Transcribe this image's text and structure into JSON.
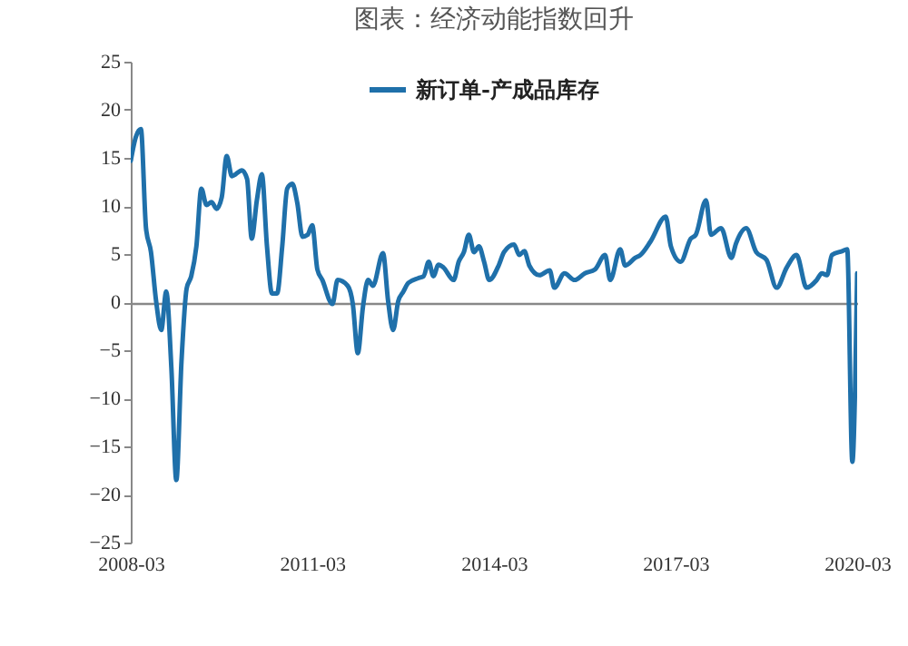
{
  "chart_data": {
    "type": "line",
    "title": "图表：经济动能指数回升",
    "x": [
      "2008-03",
      "2008-04",
      "2008-05",
      "2008-06",
      "2008-07",
      "2008-08",
      "2008-09",
      "2008-10",
      "2008-11",
      "2008-12",
      "2009-01",
      "2009-02",
      "2009-03",
      "2009-04",
      "2009-05",
      "2009-06",
      "2009-07",
      "2009-08",
      "2009-09",
      "2009-10",
      "2009-11",
      "2010-01",
      "2010-02",
      "2010-03",
      "2010-04",
      "2010-05",
      "2010-06",
      "2010-07",
      "2010-08",
      "2010-09",
      "2010-10",
      "2010-11",
      "2010-12",
      "2011-01",
      "2011-02",
      "2011-03",
      "2011-04",
      "2011-05",
      "2011-07",
      "2011-08",
      "2011-10",
      "2011-11",
      "2011-12",
      "2012-01",
      "2012-02",
      "2012-03",
      "2012-05",
      "2012-06",
      "2012-07",
      "2012-08",
      "2012-09",
      "2012-10",
      "2012-12",
      "2013-01",
      "2013-02",
      "2013-03",
      "2013-04",
      "2013-05",
      "2013-07",
      "2013-08",
      "2013-09",
      "2013-10",
      "2013-11",
      "2013-12",
      "2014-01",
      "2014-02",
      "2014-04",
      "2014-05",
      "2014-07",
      "2014-08",
      "2014-09",
      "2014-10",
      "2014-12",
      "2015-02",
      "2015-03",
      "2015-05",
      "2015-07",
      "2015-09",
      "2015-11",
      "2016-01",
      "2016-02",
      "2016-04",
      "2016-05",
      "2016-07",
      "2016-08",
      "2016-10",
      "2017-01",
      "2017-02",
      "2017-04",
      "2017-06",
      "2017-07",
      "2017-09",
      "2017-10",
      "2017-12",
      "2018-02",
      "2018-03",
      "2018-05",
      "2018-07",
      "2018-09",
      "2018-11",
      "2019-01",
      "2019-03",
      "2019-05",
      "2019-07",
      "2019-08",
      "2019-09",
      "2019-10",
      "2019-12",
      "2020-01",
      "2020-02",
      "2020-03"
    ],
    "series": [
      {
        "name": "新订单-产成品库存",
        "color": "#1f70aa",
        "values": [
          14.7,
          17.2,
          18.0,
          7.7,
          5.2,
          0.1,
          -2.9,
          1.1,
          -6.8,
          -18.5,
          -6.2,
          1.4,
          2.7,
          5.8,
          11.8,
          10.1,
          10.4,
          9.7,
          10.9,
          15.2,
          13.1,
          13.7,
          12.8,
          6.6,
          10.6,
          13.3,
          5.8,
          0.9,
          0.9,
          5.8,
          11.8,
          12.3,
          10.3,
          6.8,
          7.0,
          8.0,
          3.4,
          2.3,
          -0.2,
          2.3,
          1.7,
          -0.2,
          -5.3,
          -0.5,
          2.3,
          1.7,
          5.1,
          0.1,
          -2.9,
          0.1,
          1.1,
          2.0,
          2.5,
          2.7,
          4.2,
          2.7,
          3.9,
          3.6,
          2.3,
          4.2,
          5.2,
          7.0,
          5.2,
          5.8,
          4.2,
          2.3,
          3.9,
          5.2,
          6.0,
          4.9,
          5.3,
          3.8,
          2.8,
          3.3,
          1.5,
          3.0,
          2.3,
          3.0,
          3.4,
          4.9,
          2.3,
          5.5,
          3.8,
          4.6,
          4.9,
          6.3,
          8.9,
          5.8,
          4.2,
          6.6,
          7.0,
          10.6,
          7.0,
          7.7,
          4.6,
          6.1,
          7.7,
          5.2,
          4.4,
          1.5,
          3.6,
          4.9,
          1.5,
          2.3,
          3.0,
          2.8,
          4.9,
          5.3,
          5.5,
          -16.6,
          3.0
        ]
      }
    ],
    "xlim": [
      "2008-03",
      "2020-03"
    ],
    "xticks": [
      "2008-03",
      "2011-03",
      "2014-03",
      "2017-03",
      "2020-03"
    ],
    "ylim": [
      -25,
      25
    ],
    "yticks": [
      -25,
      -20,
      -15,
      -10,
      -5,
      0,
      5,
      10,
      15,
      20,
      25
    ],
    "legend": "top",
    "marker": "none",
    "line_style": "solid"
  }
}
